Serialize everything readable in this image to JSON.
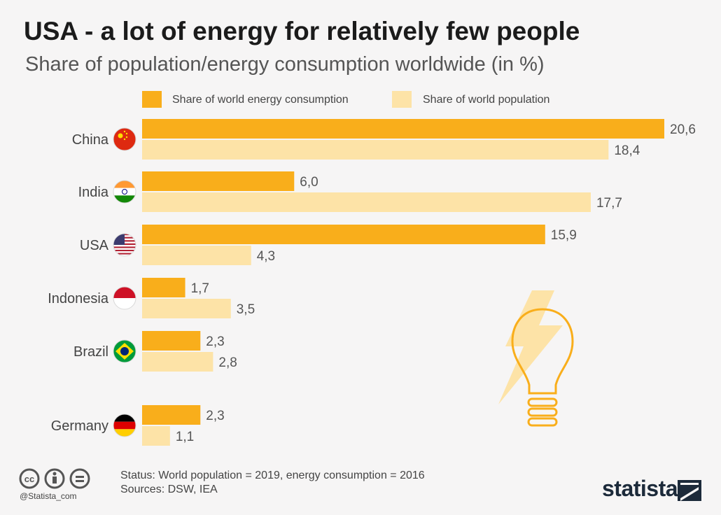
{
  "title": "USA - a lot of energy for relatively few people",
  "subtitle": "Share of population/energy consumption worldwide (in %)",
  "colors": {
    "energy": "#f9ae1b",
    "population": "#fde3a7",
    "value_text": "#555555",
    "category_text": "#444444"
  },
  "chart_data": {
    "type": "bar",
    "orientation": "horizontal",
    "categories": [
      "China",
      "India",
      "USA",
      "Indonesia",
      "Brazil",
      "Germany"
    ],
    "series": [
      {
        "name": "Share of world energy consumption",
        "values": [
          20.6,
          6.0,
          15.9,
          1.7,
          2.3,
          2.3
        ],
        "labels": [
          "20,6",
          "6,0",
          "15,9",
          "1,7",
          "2,3",
          "2,3"
        ]
      },
      {
        "name": "Share of world population",
        "values": [
          18.4,
          17.7,
          4.3,
          3.5,
          2.8,
          1.1
        ],
        "labels": [
          "18,4",
          "17,7",
          "4,3",
          "3,5",
          "2,8",
          "1,1"
        ]
      }
    ],
    "xlim": [
      0,
      20.6
    ],
    "legend": "top",
    "grid": false
  },
  "flags": [
    "china-flag-icon",
    "india-flag-icon",
    "usa-flag-icon",
    "indonesia-flag-icon",
    "brazil-flag-icon",
    "germany-flag-icon"
  ],
  "footer": {
    "status": "Status: World population = 2019, energy consumption = 2016",
    "sources": "Sources: DSW, IEA",
    "handle": "@Statista_com",
    "logo": "statista"
  }
}
